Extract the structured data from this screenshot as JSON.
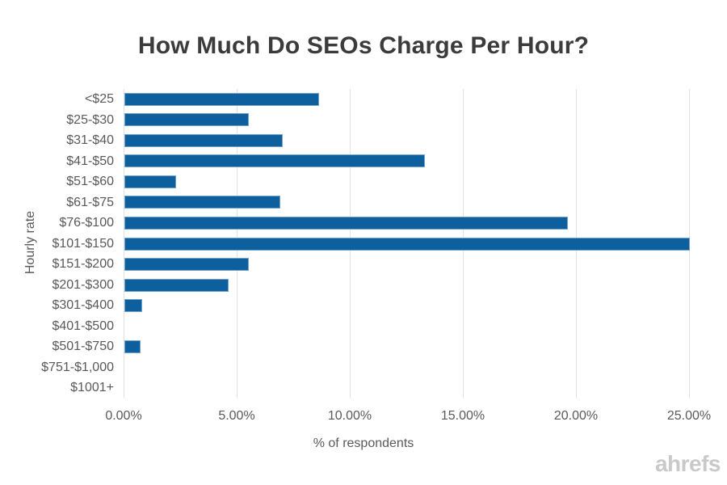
{
  "chart_data": {
    "type": "bar",
    "orientation": "horizontal",
    "title": "How Much Do SEOs Charge Per Hour?",
    "xlabel": "% of respondents",
    "ylabel": "Hourly rate",
    "categories": [
      "<$25",
      "$25-$30",
      "$31-$40",
      "$41-$50",
      "$51-$60",
      "$61-$75",
      "$76-$100",
      "$101-$150",
      "$151-$200",
      "$201-$300",
      "$301-$400",
      "$401-$500",
      "$501-$750",
      "$751-$1,000",
      "$1001+"
    ],
    "values": [
      8.6,
      5.5,
      7.0,
      13.3,
      2.3,
      6.9,
      19.6,
      25.0,
      5.5,
      4.6,
      0.8,
      0,
      0.7,
      0,
      0
    ],
    "xlim": [
      0,
      25
    ],
    "xtick_values": [
      0,
      5,
      10,
      15,
      20,
      25
    ],
    "xtick_labels": [
      "0.00%",
      "5.00%",
      "10.00%",
      "15.00%",
      "20.00%",
      "25.00%"
    ],
    "grid": true,
    "legend_position": "none",
    "watermark": "ahrefs",
    "colors": {
      "bar_fill": "#0e5f9e",
      "bar_border": "#72a3cc",
      "grid_line": "#e3e3e3",
      "title_text": "#3b3b3b",
      "axis_text": "#595959",
      "watermark_text": "#c9c9c9",
      "background": "#ffffff"
    }
  }
}
